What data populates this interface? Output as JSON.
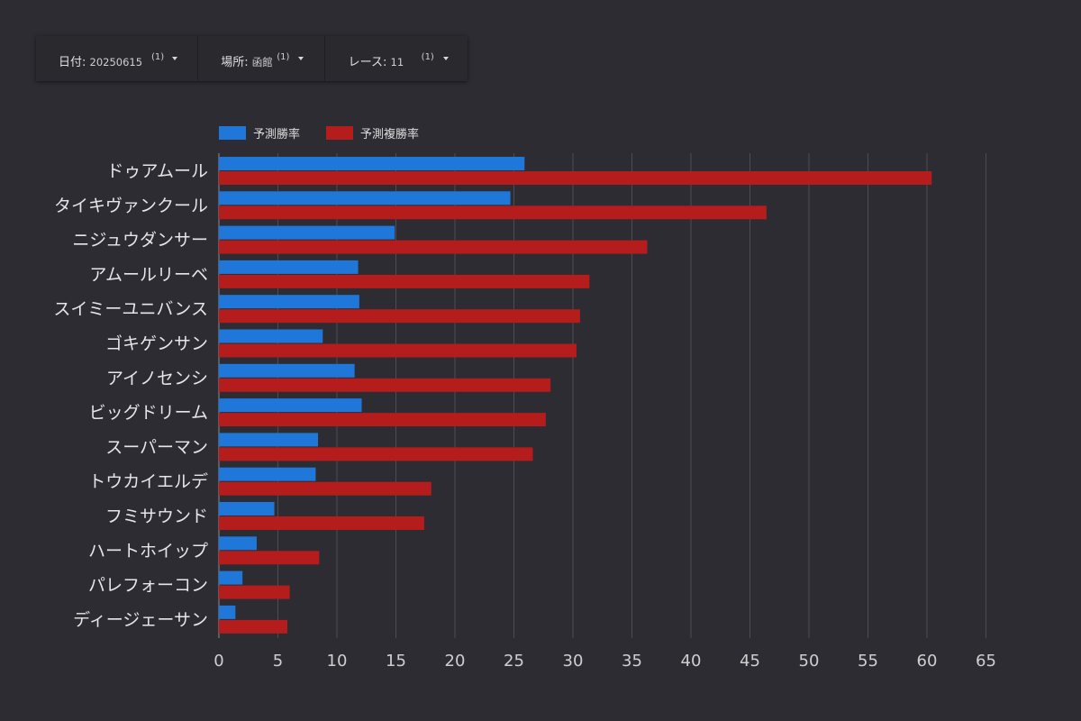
{
  "filters": [
    {
      "label": "日付",
      "value": "20250615",
      "count": "(1)"
    },
    {
      "label": "場所",
      "value": "函館",
      "count": "(1)"
    },
    {
      "label": "レース",
      "value": "11",
      "count": "(1)"
    }
  ],
  "colors": {
    "background": "#2d2c32",
    "win": "#1e77d9",
    "place": "#b51c1c",
    "grid": "#4d4c52",
    "text": "#e6e6e6"
  },
  "chart_data": {
    "type": "bar",
    "orientation": "horizontal",
    "categories": [
      "ドゥアムール",
      "タイキヴァンクール",
      "ニジュウダンサー",
      "アムールリーベ",
      "スイミーユニバンス",
      "ゴキゲンサン",
      "アイノセンシ",
      "ビッグドリーム",
      "スーパーマン",
      "トウカイエルデ",
      "フミサウンド",
      "ハートホイップ",
      "パレフォーコン",
      "ディージェーサン"
    ],
    "series": [
      {
        "name": "予測勝率",
        "values": [
          25.9,
          24.7,
          14.9,
          11.8,
          11.9,
          8.8,
          11.5,
          12.1,
          8.4,
          8.2,
          4.7,
          3.2,
          2.0,
          1.4
        ]
      },
      {
        "name": "予測複勝率",
        "values": [
          60.4,
          46.4,
          36.3,
          31.4,
          30.6,
          30.3,
          28.1,
          27.7,
          26.6,
          18.0,
          17.4,
          8.5,
          6.0,
          5.8
        ]
      }
    ],
    "xticks": [
      "0",
      "5",
      "10",
      "15",
      "20",
      "25",
      "30",
      "35",
      "40",
      "45",
      "50",
      "55",
      "60",
      "65"
    ],
    "xlim": [
      0,
      65
    ],
    "grid": true,
    "legend_position": "top-left"
  }
}
